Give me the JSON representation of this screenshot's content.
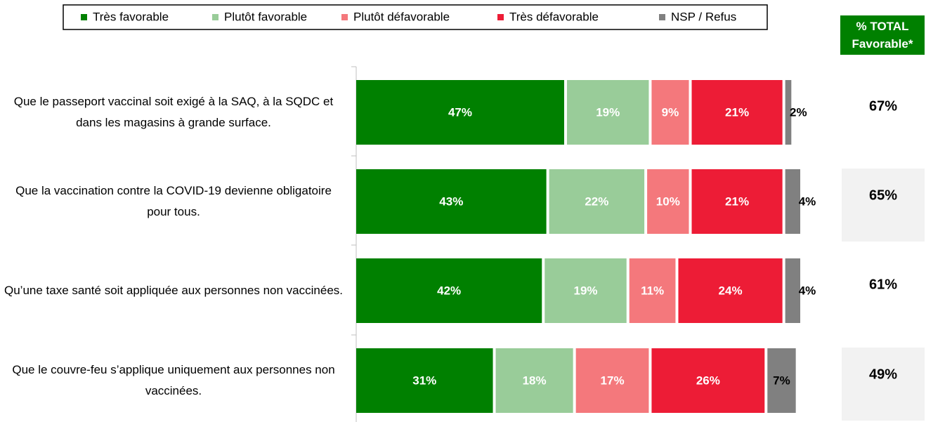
{
  "chart_data": {
    "type": "bar",
    "orientation": "horizontal",
    "stacked": true,
    "categories": [
      "Que le passeport vaccinal soit exigé à la SAQ, à la SQDC et dans les magasins à grande surface.",
      "Que la vaccination contre la COVID-19 devienne obligatoire pour tous.",
      "Qu’une taxe santé soit appliquée aux personnes non vaccinées.",
      "Que le couvre-feu s’applique uniquement aux personnes non vaccinées."
    ],
    "series": [
      {
        "name": "Très favorable",
        "color": "#008000",
        "label_color": "#ffffff",
        "values": [
          47,
          43,
          42,
          31
        ],
        "value_labels": [
          "47%",
          "43%",
          "42%",
          "31%"
        ]
      },
      {
        "name": "Plutôt favorable",
        "color": "#99cc99",
        "label_color": "#ffffff",
        "values": [
          19,
          22,
          19,
          18
        ],
        "value_labels": [
          "19%",
          "22%",
          "19%",
          "18%"
        ]
      },
      {
        "name": "Plutôt défavorable",
        "color": "#f4787c",
        "label_color": "#ffffff",
        "values": [
          9,
          10,
          11,
          17
        ],
        "value_labels": [
          "9%",
          "10%",
          "11%",
          "17%"
        ]
      },
      {
        "name": "Très défavorable",
        "color": "#ed1c36",
        "label_color": "#ffffff",
        "values": [
          21,
          21,
          24,
          26
        ],
        "value_labels": [
          "21%",
          "21%",
          "24%",
          "26%"
        ]
      },
      {
        "name": "NSP / Refus",
        "color": "#808080",
        "label_color": "#000000",
        "values": [
          2,
          4,
          4,
          7
        ],
        "value_labels": [
          "2%",
          "4%",
          "4%",
          "7%"
        ]
      }
    ],
    "xlim": [
      0,
      100
    ],
    "totals": {
      "title": "% TOTAL Favorable*",
      "color": "#008000",
      "values": [
        67,
        65,
        61,
        49
      ],
      "value_labels": [
        "67%",
        "65%",
        "61%",
        "49%"
      ]
    }
  }
}
